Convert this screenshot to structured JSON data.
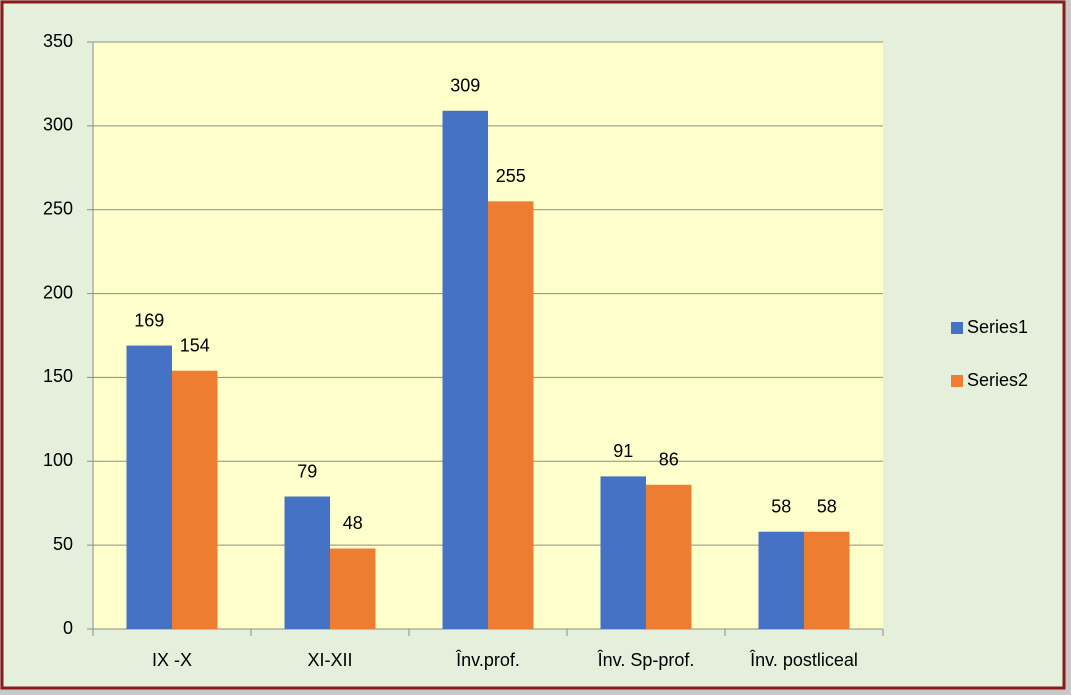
{
  "chart_data": {
    "type": "bar",
    "categories": [
      "IX -X",
      "XI-XII",
      "Înv.prof.",
      "Înv. Sp-prof.",
      "Înv. postliceal"
    ],
    "series": [
      {
        "name": "Series1",
        "color": "#4472c4",
        "values": [
          169,
          79,
          309,
          91,
          58
        ]
      },
      {
        "name": "Series2",
        "color": "#ed7d31",
        "values": [
          154,
          48,
          255,
          86,
          58
        ]
      }
    ],
    "ylim": [
      0,
      350
    ],
    "yticks": [
      0,
      50,
      100,
      150,
      200,
      250,
      300,
      350
    ],
    "grid": true,
    "legend": "right"
  }
}
